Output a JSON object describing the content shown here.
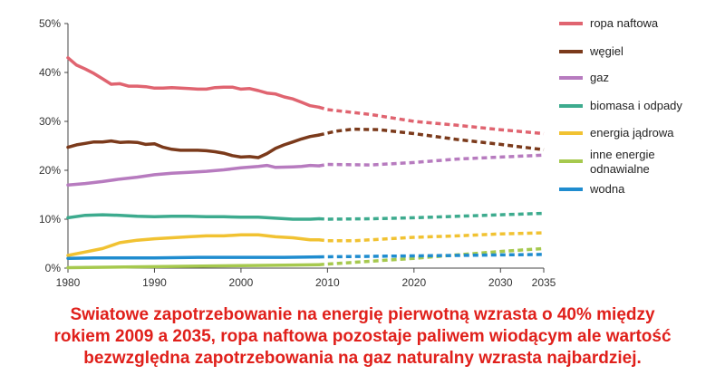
{
  "chart_data": {
    "type": "line",
    "ylim": [
      0,
      50
    ],
    "xlim": [
      1980,
      2035
    ],
    "y_ticks": [
      0,
      10,
      20,
      30,
      40,
      50
    ],
    "y_tick_labels": [
      "0%",
      "10%",
      "20%",
      "30%",
      "40%",
      "50%"
    ],
    "x_ticks": [
      1980,
      1990,
      2000,
      2010,
      2020,
      2030,
      2035
    ],
    "x_tick_labels": [
      "1980",
      "1990",
      "2000",
      "2010",
      "2020",
      "2030",
      "2035"
    ],
    "grid": false,
    "legend_position": "right",
    "note": "",
    "series": [
      {
        "name": "ropa naftowa",
        "color": "#e06470",
        "historical": [
          [
            1980,
            43.0
          ],
          [
            1981,
            41.5
          ],
          [
            1982,
            40.7
          ],
          [
            1983,
            39.8
          ],
          [
            1984,
            38.7
          ],
          [
            1985,
            37.6
          ],
          [
            1986,
            37.7
          ],
          [
            1987,
            37.2
          ],
          [
            1988,
            37.2
          ],
          [
            1989,
            37.1
          ],
          [
            1990,
            36.8
          ],
          [
            1991,
            36.8
          ],
          [
            1992,
            36.9
          ],
          [
            1993,
            36.8
          ],
          [
            1994,
            36.7
          ],
          [
            1995,
            36.6
          ],
          [
            1996,
            36.6
          ],
          [
            1997,
            36.9
          ],
          [
            1998,
            37.0
          ],
          [
            1999,
            37.0
          ],
          [
            2000,
            36.6
          ],
          [
            2001,
            36.7
          ],
          [
            2002,
            36.3
          ],
          [
            2003,
            35.8
          ],
          [
            2004,
            35.6
          ],
          [
            2005,
            35.0
          ],
          [
            2006,
            34.6
          ],
          [
            2007,
            33.9
          ],
          [
            2008,
            33.2
          ],
          [
            2009,
            32.9
          ]
        ],
        "projection": [
          [
            2009,
            32.9
          ],
          [
            2010,
            32.4
          ],
          [
            2015,
            31.4
          ],
          [
            2020,
            30.0
          ],
          [
            2025,
            29.2
          ],
          [
            2030,
            28.3
          ],
          [
            2035,
            27.5
          ]
        ]
      },
      {
        "name": "węgiel",
        "color": "#7b3a1b",
        "historical": [
          [
            1980,
            24.7
          ],
          [
            1981,
            25.2
          ],
          [
            1982,
            25.5
          ],
          [
            1983,
            25.8
          ],
          [
            1984,
            25.8
          ],
          [
            1985,
            26.0
          ],
          [
            1986,
            25.7
          ],
          [
            1987,
            25.8
          ],
          [
            1988,
            25.7
          ],
          [
            1989,
            25.3
          ],
          [
            1990,
            25.4
          ],
          [
            1991,
            24.7
          ],
          [
            1992,
            24.3
          ],
          [
            1993,
            24.1
          ],
          [
            1994,
            24.1
          ],
          [
            1995,
            24.1
          ],
          [
            1996,
            24.0
          ],
          [
            1997,
            23.8
          ],
          [
            1998,
            23.5
          ],
          [
            1999,
            23.0
          ],
          [
            2000,
            22.7
          ],
          [
            2001,
            22.8
          ],
          [
            2002,
            22.6
          ],
          [
            2003,
            23.4
          ],
          [
            2004,
            24.5
          ],
          [
            2005,
            25.2
          ],
          [
            2006,
            25.8
          ],
          [
            2007,
            26.4
          ],
          [
            2008,
            26.9
          ],
          [
            2009,
            27.2
          ]
        ],
        "projection": [
          [
            2009,
            27.2
          ],
          [
            2011,
            28.0
          ],
          [
            2013,
            28.4
          ],
          [
            2016,
            28.3
          ],
          [
            2020,
            27.5
          ],
          [
            2025,
            26.3
          ],
          [
            2030,
            25.3
          ],
          [
            2035,
            24.2
          ]
        ]
      },
      {
        "name": "gaz",
        "color": "#b77bbf",
        "historical": [
          [
            1980,
            17.0
          ],
          [
            1982,
            17.3
          ],
          [
            1984,
            17.7
          ],
          [
            1986,
            18.2
          ],
          [
            1988,
            18.6
          ],
          [
            1990,
            19.1
          ],
          [
            1992,
            19.4
          ],
          [
            1994,
            19.6
          ],
          [
            1996,
            19.8
          ],
          [
            1998,
            20.1
          ],
          [
            2000,
            20.5
          ],
          [
            2002,
            20.8
          ],
          [
            2003,
            21.0
          ],
          [
            2004,
            20.6
          ],
          [
            2006,
            20.7
          ],
          [
            2007,
            20.8
          ],
          [
            2008,
            21.0
          ],
          [
            2009,
            20.9
          ]
        ],
        "projection": [
          [
            2009,
            20.9
          ],
          [
            2010,
            21.2
          ],
          [
            2015,
            21.1
          ],
          [
            2020,
            21.6
          ],
          [
            2025,
            22.3
          ],
          [
            2030,
            22.7
          ],
          [
            2035,
            23.1
          ]
        ]
      },
      {
        "name": "biomasa i odpady",
        "color": "#3dab8e",
        "historical": [
          [
            1980,
            10.3
          ],
          [
            1982,
            10.8
          ],
          [
            1984,
            10.9
          ],
          [
            1986,
            10.8
          ],
          [
            1988,
            10.6
          ],
          [
            1990,
            10.5
          ],
          [
            1992,
            10.6
          ],
          [
            1994,
            10.6
          ],
          [
            1996,
            10.5
          ],
          [
            1998,
            10.5
          ],
          [
            2000,
            10.4
          ],
          [
            2002,
            10.4
          ],
          [
            2004,
            10.2
          ],
          [
            2006,
            10.0
          ],
          [
            2008,
            10.0
          ],
          [
            2009,
            10.1
          ]
        ],
        "projection": [
          [
            2009,
            10.1
          ],
          [
            2010,
            10.0
          ],
          [
            2015,
            10.1
          ],
          [
            2020,
            10.3
          ],
          [
            2025,
            10.6
          ],
          [
            2030,
            10.9
          ],
          [
            2035,
            11.2
          ]
        ]
      },
      {
        "name": "energia jądrowa",
        "color": "#f1c232",
        "historical": [
          [
            1980,
            2.6
          ],
          [
            1982,
            3.3
          ],
          [
            1984,
            4.0
          ],
          [
            1986,
            5.2
          ],
          [
            1988,
            5.7
          ],
          [
            1990,
            6.0
          ],
          [
            1992,
            6.2
          ],
          [
            1994,
            6.4
          ],
          [
            1996,
            6.6
          ],
          [
            1998,
            6.6
          ],
          [
            2000,
            6.8
          ],
          [
            2002,
            6.8
          ],
          [
            2004,
            6.4
          ],
          [
            2006,
            6.2
          ],
          [
            2008,
            5.8
          ],
          [
            2009,
            5.8
          ]
        ],
        "projection": [
          [
            2009,
            5.8
          ],
          [
            2010,
            5.6
          ],
          [
            2013,
            5.6
          ],
          [
            2020,
            6.3
          ],
          [
            2025,
            6.6
          ],
          [
            2030,
            7.0
          ],
          [
            2035,
            7.2
          ]
        ]
      },
      {
        "name": "inne energie odnawialne",
        "color": "#a6c94e",
        "historical": [
          [
            1980,
            0.1
          ],
          [
            1990,
            0.3
          ],
          [
            2000,
            0.5
          ],
          [
            2005,
            0.6
          ],
          [
            2009,
            0.7
          ]
        ],
        "projection": [
          [
            2009,
            0.7
          ],
          [
            2015,
            1.4
          ],
          [
            2020,
            2.0
          ],
          [
            2025,
            2.7
          ],
          [
            2030,
            3.4
          ],
          [
            2035,
            4.0
          ]
        ]
      },
      {
        "name": "wodna",
        "color": "#1f8ccf",
        "historical": [
          [
            1980,
            2.0
          ],
          [
            1983,
            2.1
          ],
          [
            1986,
            2.1
          ],
          [
            1990,
            2.1
          ],
          [
            1995,
            2.2
          ],
          [
            2000,
            2.2
          ],
          [
            2005,
            2.2
          ],
          [
            2009,
            2.3
          ]
        ],
        "projection": [
          [
            2009,
            2.3
          ],
          [
            2015,
            2.4
          ],
          [
            2020,
            2.5
          ],
          [
            2025,
            2.6
          ],
          [
            2030,
            2.7
          ],
          [
            2035,
            2.8
          ]
        ]
      }
    ]
  },
  "caption": {
    "line1": "Swiatowe zapotrzebowanie na energię pierwotną wzrasta o 40% między",
    "line2": "rokiem 2009 a 2035, ropa naftowa pozostaje paliwem wiodącym ale wartość",
    "line3": "bezwzględna zapotrzebowania na gaz naturalny wzrasta najbardziej."
  }
}
